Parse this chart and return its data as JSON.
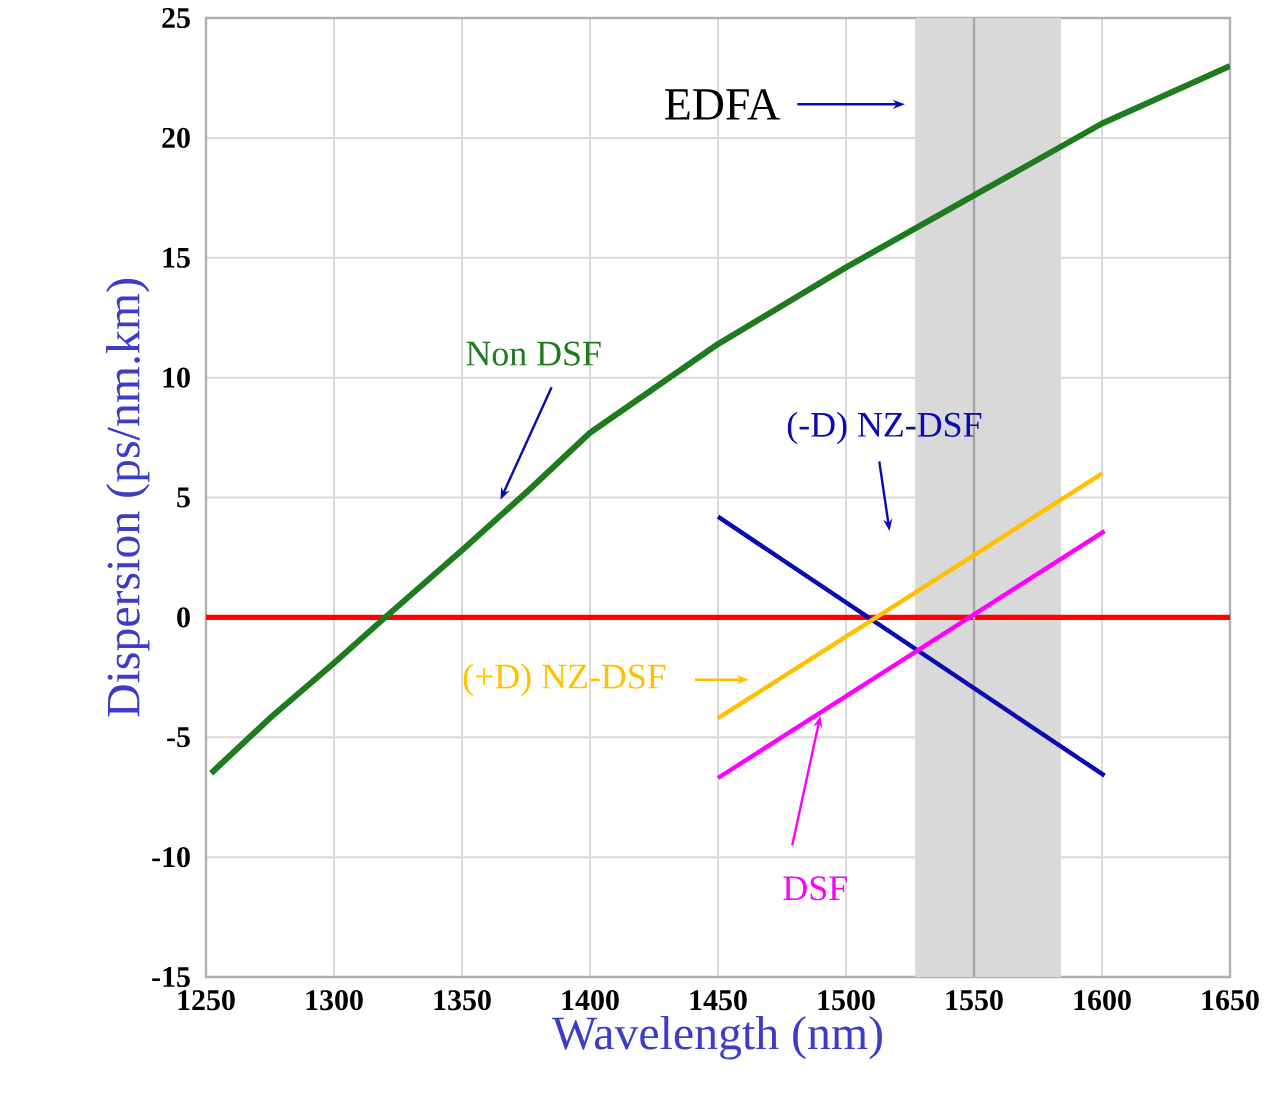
{
  "chart_data": {
    "type": "line",
    "xlabel": "Wavelength (nm)",
    "ylabel": "Dispersion (ps/nm.km)",
    "xlim": [
      1250,
      1650
    ],
    "ylim": [
      -15,
      25
    ],
    "xticks": [
      1250,
      1300,
      1350,
      1400,
      1450,
      1500,
      1550,
      1600,
      1650
    ],
    "yticks": [
      -15,
      -10,
      -5,
      0,
      5,
      10,
      15,
      20,
      25
    ],
    "grid": true,
    "line_style": "solid",
    "marker": "none",
    "series": [
      {
        "name": "Non DSF",
        "color": "#1e7b1e",
        "x": [
          1252,
          1275,
          1300,
          1320,
          1350,
          1375,
          1400,
          1450,
          1500,
          1550,
          1600,
          1650
        ],
        "values": [
          -6.5,
          -4.2,
          -1.9,
          0,
          2.8,
          5.2,
          7.7,
          11.4,
          14.6,
          17.6,
          20.6,
          23.0
        ]
      },
      {
        "name": "(-D) NZ-DSF",
        "color": "#0a0ab4",
        "x": [
          1450,
          1601
        ],
        "values": [
          4.2,
          -6.6
        ]
      },
      {
        "name": "(+D) NZ-DSF",
        "color": "#ffc000",
        "x": [
          1450,
          1600
        ],
        "values": [
          -4.2,
          6.0
        ]
      },
      {
        "name": "DSF",
        "color": "#ff00ff",
        "x": [
          1450,
          1601
        ],
        "values": [
          -6.7,
          3.6
        ]
      }
    ],
    "ref_lines": [
      {
        "axis": "y",
        "value": 0,
        "color": "#ff0000"
      },
      {
        "axis": "x",
        "value": 1550,
        "color": "#a6a6a6"
      }
    ],
    "bands": [
      {
        "axis": "x",
        "from": 1527,
        "to": 1584,
        "label": "EDFA",
        "color": "#d9d9d9"
      }
    ]
  }
}
